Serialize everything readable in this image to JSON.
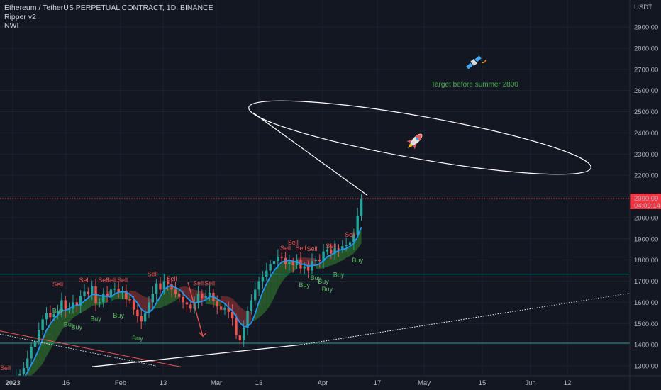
{
  "legend": {
    "symbol": "Ethereum / TetherUS PERPETUAL CONTRACT, 1D, BINANCE",
    "indicator1": "Ripper v2",
    "indicator2": "NWI"
  },
  "colors": {
    "background": "#131722",
    "up": "#26a69a",
    "down": "#ef5350",
    "ribbon_up": "#2e6b2e",
    "ribbon_down": "#7a2f33",
    "ma": "#2196f3",
    "level": "#26a69a",
    "trend": "#ffffff",
    "price_label": "#f23645"
  },
  "chart_data": {
    "type": "candlestick",
    "title": "Ethereum / TetherUS PERPETUAL CONTRACT, 1D, BINANCE",
    "currency": "USDT",
    "ylim": [
      1260,
      3000
    ],
    "y_ticks": [
      "1300.00",
      "1400.00",
      "1500.00",
      "1600.00",
      "1700.00",
      "1800.00",
      "1900.00",
      "2000.00",
      "2100.00",
      "2200.00",
      "2300.00",
      "2400.00",
      "2500.00",
      "2600.00",
      "2700.00",
      "2800.00",
      "2900.00"
    ],
    "x_ticks": [
      "2023",
      "16",
      "Feb",
      "13",
      "Mar",
      "13",
      "Apr",
      "17",
      "May",
      "15",
      "Jun",
      "12"
    ],
    "last_price": "2090.09",
    "countdown": "04:09:14",
    "closes": [
      1200,
      1215,
      1250,
      1262,
      1290,
      1335,
      1390,
      1415,
      1470,
      1520,
      1550,
      1530,
      1545,
      1560,
      1610,
      1565,
      1570,
      1600,
      1585,
      1630,
      1650,
      1640,
      1675,
      1595,
      1600,
      1640,
      1630,
      1660,
      1665,
      1645,
      1655,
      1615,
      1610,
      1565,
      1535,
      1510,
      1550,
      1600,
      1640,
      1690,
      1660,
      1700,
      1685,
      1660,
      1640,
      1625,
      1600,
      1590,
      1570,
      1600,
      1640,
      1620,
      1630,
      1645,
      1605,
      1580,
      1565,
      1575,
      1555,
      1525,
      1445,
      1420,
      1480,
      1560,
      1610,
      1660,
      1700,
      1720,
      1750,
      1780,
      1795,
      1815,
      1810,
      1780,
      1790,
      1775,
      1800,
      1760,
      1770,
      1750,
      1795,
      1800,
      1795,
      1840,
      1850,
      1830,
      1855,
      1850,
      1865,
      1870,
      1885,
      1920,
      2010,
      2090
    ],
    "levels": [
      1733,
      1407
    ],
    "signals": [
      {
        "type": "Sell",
        "i": 13,
        "price": 1675
      },
      {
        "type": "Sell",
        "i": 20,
        "price": 1695
      },
      {
        "type": "Sell",
        "i": 25,
        "price": 1695
      },
      {
        "type": "Sell",
        "i": 27,
        "price": 1695
      },
      {
        "type": "Sell",
        "i": 30,
        "price": 1695
      },
      {
        "type": "Sell",
        "i": 38,
        "price": 1723
      },
      {
        "type": "Sell",
        "i": 43,
        "price": 1702
      },
      {
        "type": "Sell",
        "i": 50,
        "price": 1680
      },
      {
        "type": "Sell",
        "i": 53,
        "price": 1680
      },
      {
        "type": "Sell",
        "i": 73,
        "price": 1845
      },
      {
        "type": "Sell",
        "i": 75,
        "price": 1872
      },
      {
        "type": "Sell",
        "i": 77,
        "price": 1845
      },
      {
        "type": "Sell",
        "i": 80,
        "price": 1843
      },
      {
        "type": "Sell",
        "i": 85,
        "price": 1855
      },
      {
        "type": "Sell",
        "i": 90,
        "price": 1910
      },
      {
        "type": "Buy",
        "i": 13,
        "price": 1550
      },
      {
        "type": "Buy",
        "i": 16,
        "price": 1485
      },
      {
        "type": "Buy",
        "i": 18,
        "price": 1473
      },
      {
        "type": "Buy",
        "i": 23,
        "price": 1512
      },
      {
        "type": "Buy",
        "i": 29,
        "price": 1528
      },
      {
        "type": "Buy",
        "i": 34,
        "price": 1420
      },
      {
        "type": "Buy",
        "i": 78,
        "price": 1672
      },
      {
        "type": "Buy",
        "i": 81,
        "price": 1705
      },
      {
        "type": "Buy",
        "i": 83,
        "price": 1688
      },
      {
        "type": "Buy",
        "i": 84,
        "price": 1652
      },
      {
        "type": "Buy",
        "i": 87,
        "price": 1720
      },
      {
        "type": "Buy",
        "i": 92,
        "price": 1788
      }
    ],
    "annotation": "Target before summer 2800",
    "edge_sell": "Sell"
  }
}
